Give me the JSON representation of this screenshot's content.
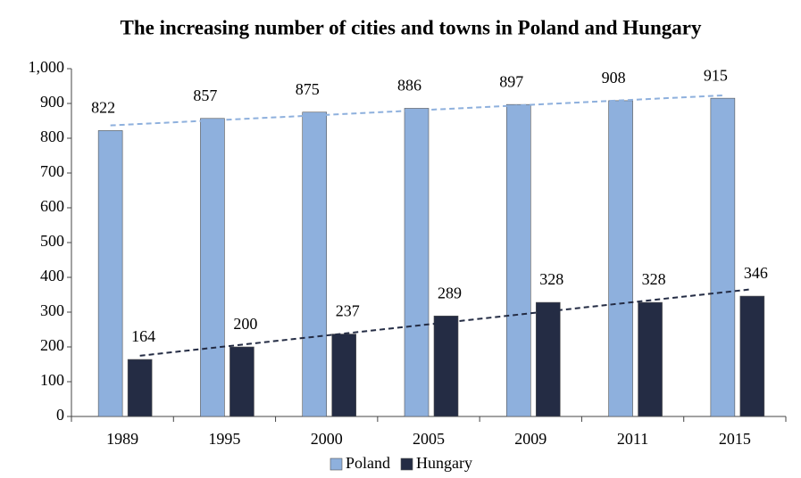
{
  "chart_data": {
    "type": "bar",
    "title": "The increasing number of cities and towns in Poland and Hungary",
    "categories": [
      "1989",
      "1995",
      "2000",
      "2005",
      "2009",
      "2011",
      "2015"
    ],
    "series": [
      {
        "name": "Poland",
        "color": "#8eb0dd",
        "trend_color": "#8eb0dd",
        "values": [
          822,
          857,
          875,
          886,
          897,
          908,
          915
        ]
      },
      {
        "name": "Hungary",
        "color": "#242c44",
        "trend_color": "#242c44",
        "values": [
          164,
          200,
          237,
          289,
          328,
          328,
          346
        ]
      }
    ],
    "ylim": [
      0,
      1000
    ],
    "yticks": [
      0,
      100,
      200,
      300,
      400,
      500,
      600,
      700,
      800,
      900,
      {
        "value": 1000,
        "label": "1,000"
      }
    ],
    "trendline": true,
    "grid": false,
    "legend": "bottom"
  }
}
